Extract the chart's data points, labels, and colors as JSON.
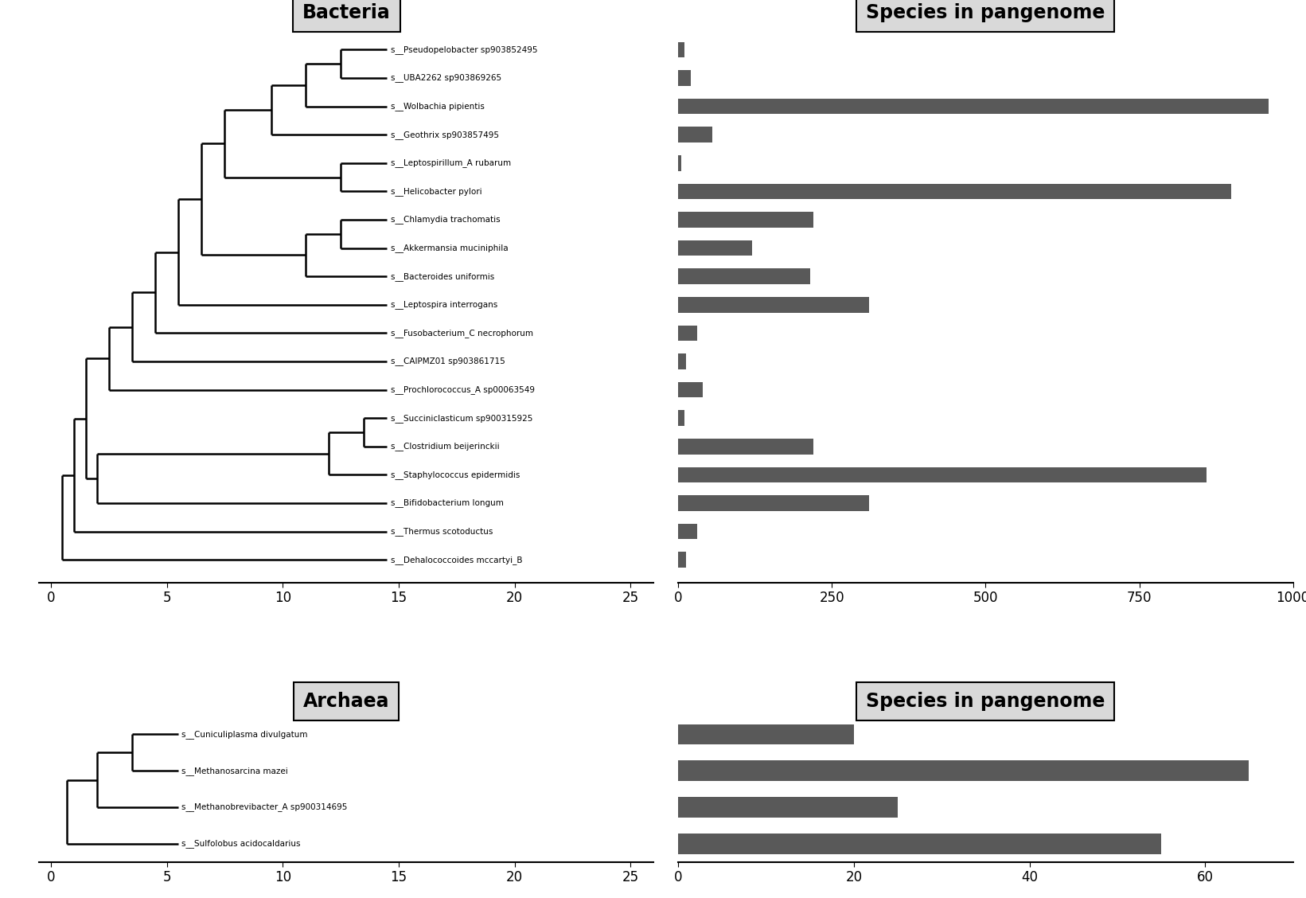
{
  "bacteria_species": [
    "s__Pseudopelobacter sp903852495",
    "s__UBA2262 sp903869265",
    "s__Wolbachia pipientis",
    "s__Geothrix sp903857495",
    "s__Leptospirillum_A rubarum",
    "s__Helicobacter pylori",
    "s__Chlamydia trachomatis",
    "s__Akkermansia muciniphila",
    "s__Bacteroides uniformis",
    "s__Leptospira interrogans",
    "s__Fusobacterium_C necrophorum",
    "s__CAIPMZ01 sp903861715",
    "s__Prochlorococcus_A sp00063549",
    "s__Succiniclasticum sp900315925",
    "s__Clostridium beijerinckii",
    "s__Staphylococcus epidermidis",
    "s__Bifidobacterium longum",
    "s__Thermus scotoductus",
    "s__Dehalococcoides mccartyi_B"
  ],
  "bacteria_pangenome_values": [
    10,
    20,
    960,
    55,
    5,
    900,
    220,
    120,
    215,
    310,
    30,
    12,
    40,
    10,
    220,
    860,
    310,
    30,
    12
  ],
  "archaea_species": [
    "s__Cuniculiplasma divulgatum",
    "s__Methanosarcina mazei",
    "s__Methanobrevibacter_A sp900314695",
    "s__Sulfolobus acidocaldarius"
  ],
  "archaea_pangenome_values": [
    20,
    65,
    25,
    55
  ],
  "bar_color": "#595959",
  "background_color": "#d9d9d9",
  "bacteria_bar_xticks": [
    0,
    250,
    500,
    750,
    1000
  ],
  "bacteria_bar_xlabels": [
    "0",
    "250",
    "500",
    "750",
    "1000"
  ],
  "archaea_bar_xticks": [
    0,
    20,
    40,
    60
  ],
  "archaea_bar_xlabels": [
    "0",
    "20",
    "40",
    "60"
  ],
  "tree_xticks": [
    0,
    5,
    10,
    15,
    20,
    25
  ],
  "tree_xlabels": [
    "0",
    "5",
    "10",
    "15",
    "20",
    "25"
  ]
}
